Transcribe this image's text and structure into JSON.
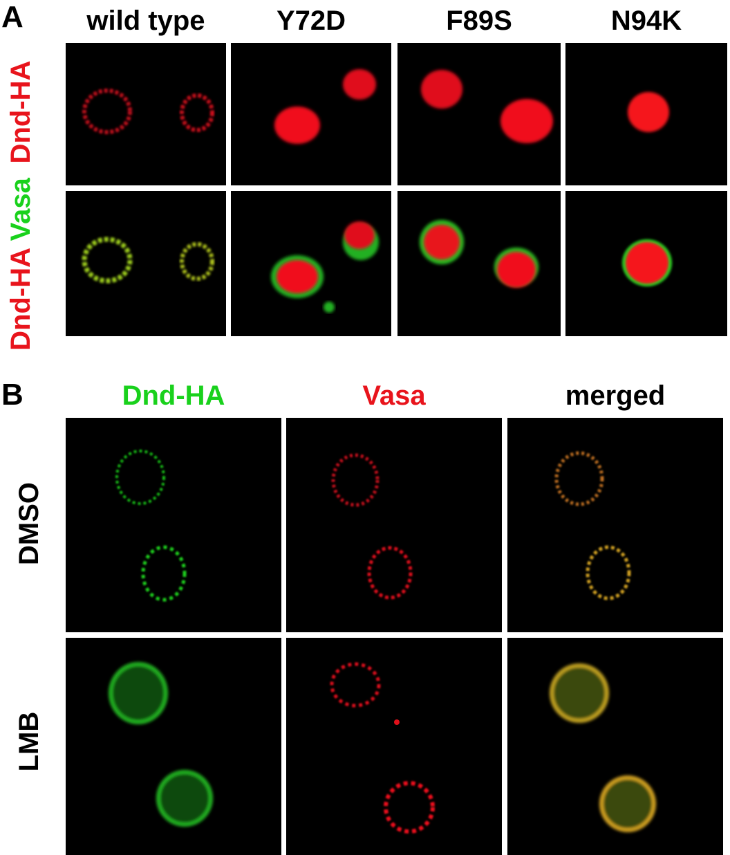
{
  "figure": {
    "panel_a": {
      "letter": "A",
      "columns": [
        "wild type",
        "Y72D",
        "F89S",
        "N94K"
      ],
      "rows": [
        {
          "parts": [
            {
              "text": "Dnd-HA",
              "color": "#e8141c"
            }
          ]
        },
        {
          "parts": [
            {
              "text": "Dnd-HA",
              "color": "#e8141c"
            },
            {
              "text": "Vasa",
              "color": "#19d11c"
            }
          ]
        }
      ]
    },
    "panel_b": {
      "letter": "B",
      "columns": [
        {
          "text": "Dnd-HA",
          "color": "#19d11c"
        },
        {
          "text": "Vasa",
          "color": "#e8141c"
        },
        {
          "text": "merged",
          "color": "#000000"
        }
      ],
      "rows": [
        "DMSO",
        "LMB"
      ]
    }
  }
}
